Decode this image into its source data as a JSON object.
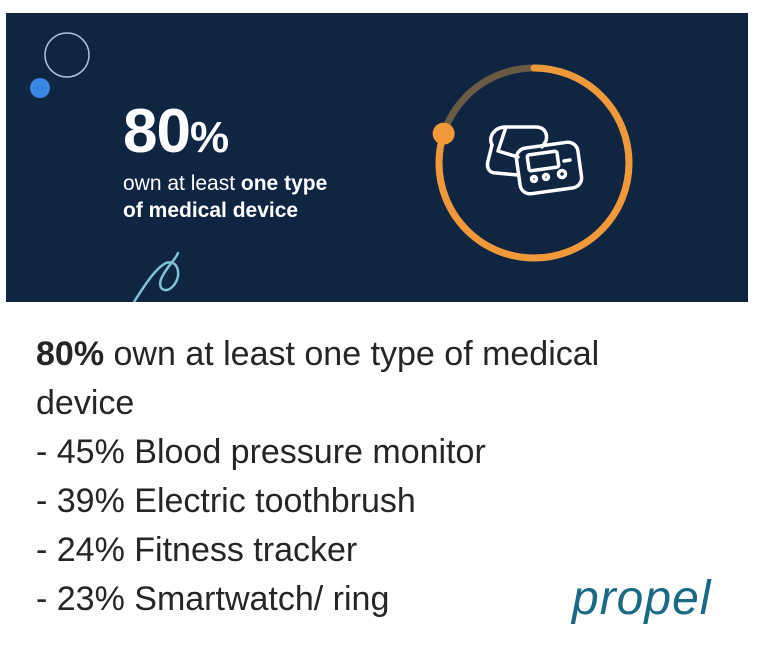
{
  "banner": {
    "stat_number": "80",
    "stat_symbol": "%",
    "sub_plain": "own at least ",
    "sub_bold_1": "one type",
    "sub_bold_2": "of medical device",
    "ring_progress": 0.8,
    "colors": {
      "background": "#0f2542",
      "ring_fill": "#f0993a",
      "ring_remainder": "#6b5a45",
      "dot_blue": "#3b86e0",
      "circle_outline": "#a9c2d6",
      "swirl": "#7fc3d6"
    },
    "icon": "blood-pressure-monitor-icon"
  },
  "caption": {
    "headline_bold": "80%",
    "headline_rest": " own at least one type of medical",
    "headline_cont": "device",
    "items": [
      "- 45% Blood pressure monitor",
      "- 39% Electric toothbrush",
      "- 24% Fitness tracker",
      "- 23% Smartwatch/ ring"
    ]
  },
  "logo": {
    "text": "propel",
    "color": "#1a6a86"
  }
}
